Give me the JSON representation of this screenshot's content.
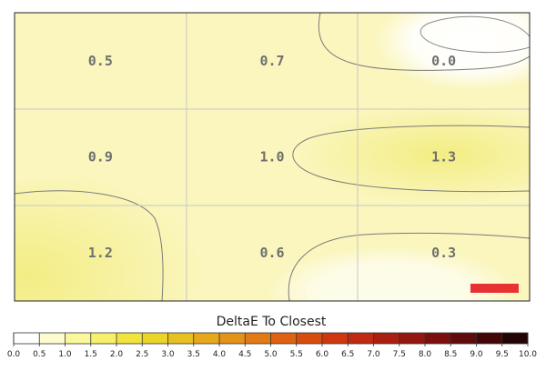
{
  "chart_data": {
    "type": "heatmap",
    "rows": 3,
    "cols": 3,
    "values": [
      [
        0.5,
        0.7,
        0.0
      ],
      [
        0.9,
        1.0,
        1.3
      ],
      [
        1.2,
        0.6,
        0.3
      ]
    ],
    "colorbar": {
      "title": "DeltaE To Closest",
      "ticks": [
        "0.0",
        "0.5",
        "1.0",
        "1.5",
        "2.0",
        "2.5",
        "3.0",
        "3.5",
        "4.0",
        "4.5",
        "5.0",
        "5.5",
        "6.0",
        "6.5",
        "7.0",
        "7.5",
        "8.0",
        "8.5",
        "9.0",
        "9.5",
        "10.0"
      ],
      "colors": [
        "#ffffff",
        "#fdfccf",
        "#fbf89c",
        "#f7f06a",
        "#f1e43e",
        "#ecd42a",
        "#e8c021",
        "#e6a91c",
        "#e49218",
        "#e27b15",
        "#df6212",
        "#d94c10",
        "#cf380f",
        "#c02a10",
        "#ab1f10",
        "#94160f",
        "#7b0f0e",
        "#600a0b",
        "#430608",
        "#230304"
      ]
    },
    "legend_swatch_color": "#e83232"
  }
}
